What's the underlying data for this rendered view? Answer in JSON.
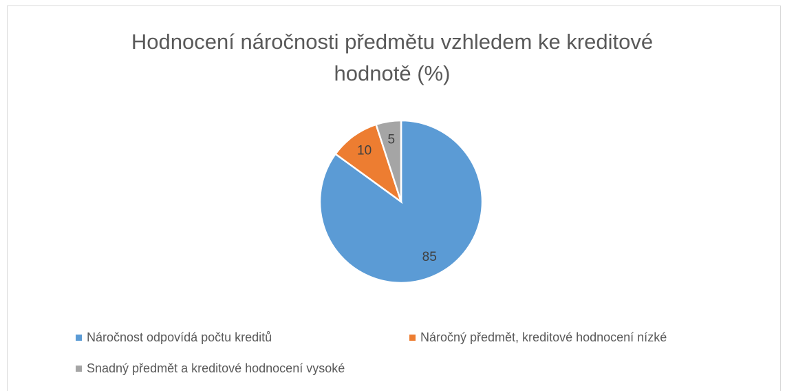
{
  "chart_data": {
    "type": "pie",
    "title": "Hodnocení náročnosti předmětu vzhledem ke kreditové hodnotě (%)",
    "categories": [
      "Náročnost odpovídá počtu kreditů",
      "Náročný předmět, kreditové hodnocení nízké",
      "Snadný předmět a kreditové hodnocení vysoké"
    ],
    "values": [
      85,
      10,
      5
    ],
    "colors": [
      "#5b9bd5",
      "#ed7d31",
      "#a5a5a5"
    ]
  }
}
